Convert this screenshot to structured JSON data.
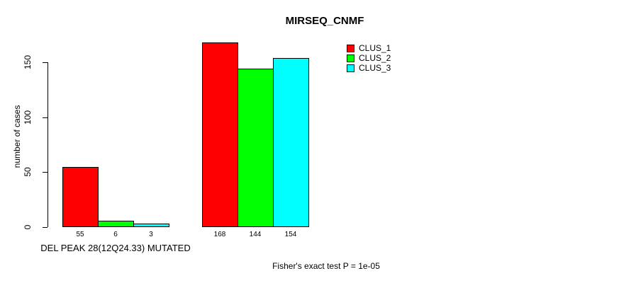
{
  "title": "MIRSEQ_CNMF",
  "y_axis": {
    "label": "number of cases",
    "tick_labels": [
      "0",
      "50",
      "100",
      "150"
    ]
  },
  "x_axis": {
    "group_label": "DEL PEAK 28(12Q24.33) MUTATED"
  },
  "legend": {
    "items": [
      {
        "label": "CLUS_1",
        "color": "#FF0000"
      },
      {
        "label": "CLUS_2",
        "color": "#00FF00"
      },
      {
        "label": "CLUS_3",
        "color": "#00FFFF"
      }
    ]
  },
  "footnote": "Fisher's exact test P = 1e-05",
  "chart_data": {
    "type": "bar",
    "title": "MIRSEQ_CNMF",
    "xlabel": "",
    "ylabel": "number of cases",
    "ylim": [
      0,
      150
    ],
    "yticks": [
      0,
      50,
      100,
      150
    ],
    "grid": false,
    "legend_position": "top-right",
    "categories": [
      "DEL PEAK 28(12Q24.33) MUTATED",
      ""
    ],
    "series": [
      {
        "name": "CLUS_1",
        "color": "#FF0000",
        "values": [
          55,
          168
        ]
      },
      {
        "name": "CLUS_2",
        "color": "#00FF00",
        "values": [
          6,
          144
        ]
      },
      {
        "name": "CLUS_3",
        "color": "#00FFFF",
        "values": [
          3,
          154
        ]
      }
    ],
    "bar_value_labels": [
      [
        "55",
        "6",
        "3"
      ],
      [
        "168",
        "144",
        "154"
      ]
    ],
    "annotation": "Fisher's exact test P = 1e-05"
  }
}
